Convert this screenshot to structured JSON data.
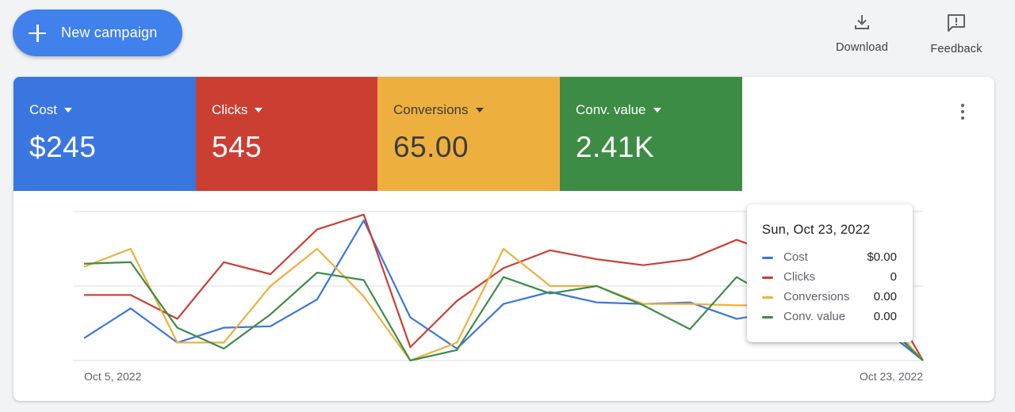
{
  "header": {
    "new_campaign_label": "New campaign",
    "download_label": "Download",
    "feedback_label": "Feedback"
  },
  "scorecards": [
    {
      "name": "Cost",
      "value": "$245",
      "color": "#3a76e0"
    },
    {
      "name": "Clicks",
      "value": "545",
      "color": "#cb3f33"
    },
    {
      "name": "Conversions",
      "value": "65.00",
      "color": "#edb03e"
    },
    {
      "name": "Conv. value",
      "value": "2.41K",
      "color": "#3d8c46"
    }
  ],
  "tooltip": {
    "date": "Sun, Oct 23, 2022",
    "rows": [
      {
        "name": "Cost",
        "value": "$0.00",
        "color": "#3a76e0"
      },
      {
        "name": "Clicks",
        "value": "0",
        "color": "#cb3f33"
      },
      {
        "name": "Conversions",
        "value": "0.00",
        "color": "#edb03e"
      },
      {
        "name": "Conv. value",
        "value": "0.00",
        "color": "#3d8c46"
      }
    ]
  },
  "chart_data": {
    "type": "line",
    "x_labels": [
      "Oct 5, 2022",
      "Oct 23, 2022"
    ],
    "x": [
      "Oct 5",
      "Oct 6",
      "Oct 7",
      "Oct 8",
      "Oct 9",
      "Oct 10",
      "Oct 11",
      "Oct 12",
      "Oct 13",
      "Oct 14",
      "Oct 15",
      "Oct 16",
      "Oct 17",
      "Oct 18",
      "Oct 19",
      "Oct 20",
      "Oct 21",
      "Oct 22",
      "Oct 23"
    ],
    "ylim": [
      0,
      100
    ],
    "grid": true,
    "series": [
      {
        "name": "Cost",
        "color": "#3a76e0",
        "values": [
          15,
          35,
          12,
          22,
          23,
          41,
          94,
          29,
          8,
          38,
          46,
          39,
          38,
          39,
          28,
          33,
          24,
          25,
          0
        ]
      },
      {
        "name": "Clicks",
        "color": "#cb3f33",
        "values": [
          44,
          44,
          28,
          66,
          58,
          88,
          98,
          9,
          40,
          62,
          74,
          68,
          64,
          68,
          81,
          70,
          66,
          54,
          0
        ]
      },
      {
        "name": "Conversions",
        "color": "#edb03e",
        "values": [
          63,
          75,
          12,
          12,
          50,
          75,
          43,
          0,
          12,
          75,
          50,
          50,
          38,
          38,
          37,
          37,
          35,
          34,
          0
        ]
      },
      {
        "name": "Conv. value",
        "color": "#3d8c46",
        "values": [
          65,
          66,
          22,
          8,
          31,
          59,
          54,
          0,
          7,
          56,
          45,
          50,
          37,
          21,
          56,
          38,
          34,
          30,
          0
        ]
      }
    ]
  }
}
